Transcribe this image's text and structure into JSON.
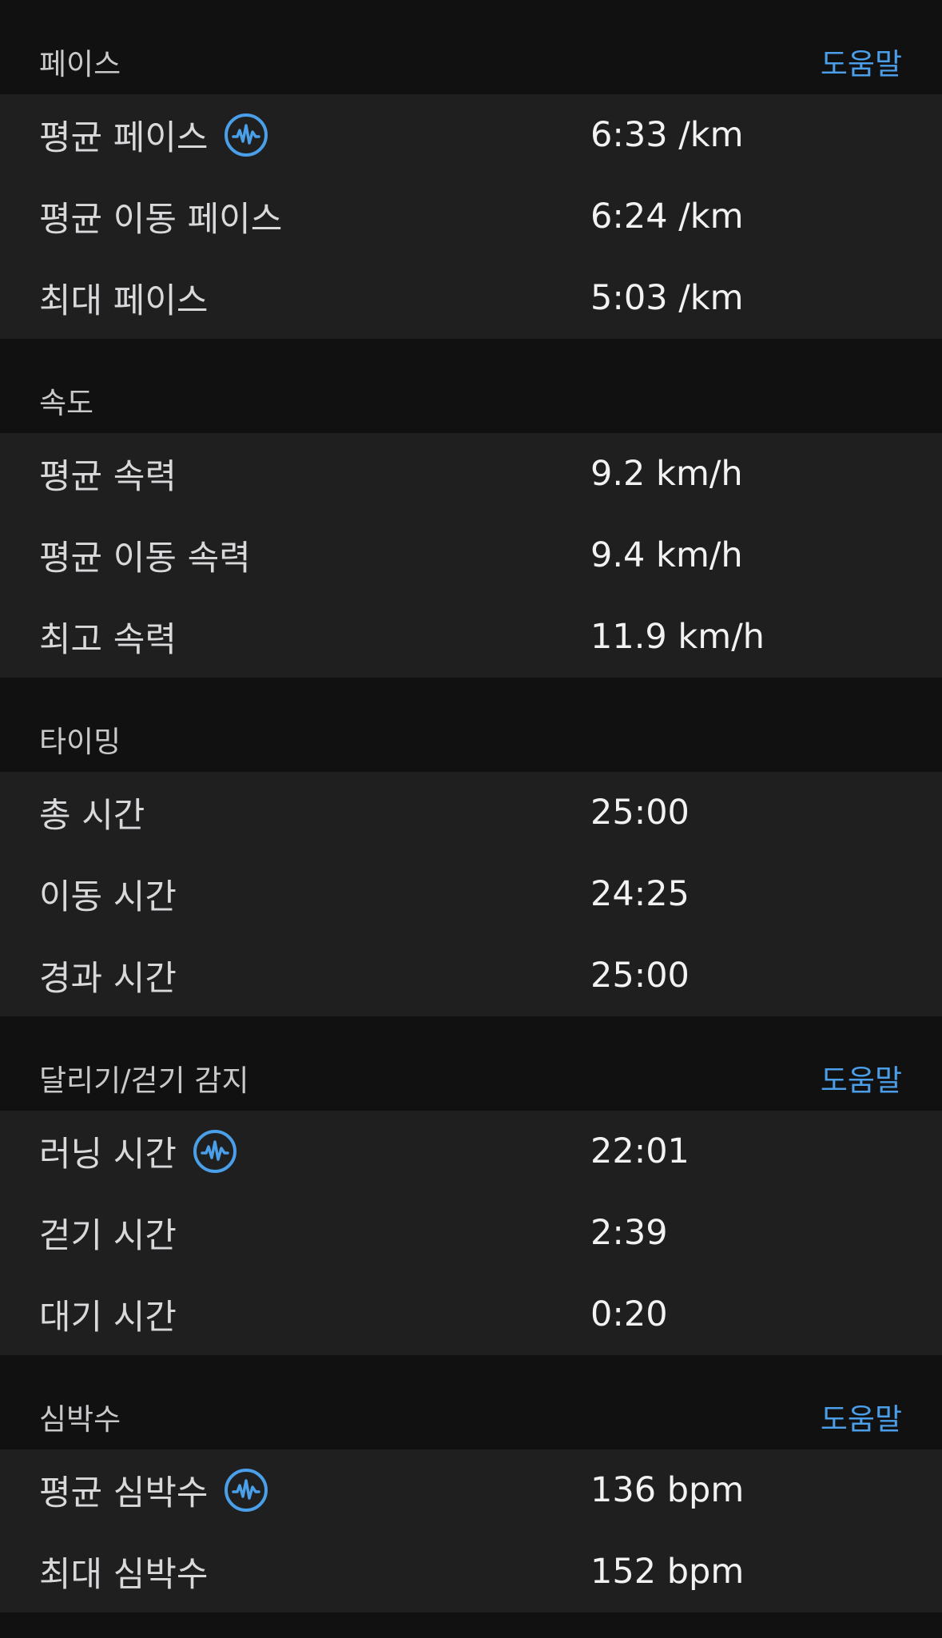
{
  "colors": {
    "background": "#111112",
    "card": "#1f1f20",
    "accent": "#4a9fe8",
    "label": "#d9d9db",
    "value": "#f2f2f2"
  },
  "sections": [
    {
      "title": "페이스",
      "help": "도움말",
      "rows": [
        {
          "label": "평균 페이스",
          "value": "6:33 /km",
          "icon": "activity-pulse-icon"
        },
        {
          "label": "평균 이동 페이스",
          "value": "6:24 /km"
        },
        {
          "label": "최대 페이스",
          "value": "5:03 /km"
        }
      ]
    },
    {
      "title": "속도",
      "rows": [
        {
          "label": "평균 속력",
          "value": "9.2 km/h"
        },
        {
          "label": "평균 이동 속력",
          "value": "9.4 km/h"
        },
        {
          "label": "최고 속력",
          "value": "11.9 km/h"
        }
      ]
    },
    {
      "title": "타이밍",
      "rows": [
        {
          "label": "총 시간",
          "value": "25:00"
        },
        {
          "label": "이동 시간",
          "value": "24:25"
        },
        {
          "label": "경과 시간",
          "value": "25:00"
        }
      ]
    },
    {
      "title": "달리기/걷기 감지",
      "help": "도움말",
      "rows": [
        {
          "label": "러닝 시간",
          "value": "22:01",
          "icon": "activity-pulse-icon"
        },
        {
          "label": "걷기 시간",
          "value": "2:39"
        },
        {
          "label": "대기 시간",
          "value": "0:20"
        }
      ]
    },
    {
      "title": "심박수",
      "help": "도움말",
      "rows": [
        {
          "label": "평균 심박수",
          "value": "136 bpm",
          "icon": "activity-pulse-icon"
        },
        {
          "label": "최대 심박수",
          "value": "152 bpm"
        }
      ]
    }
  ]
}
